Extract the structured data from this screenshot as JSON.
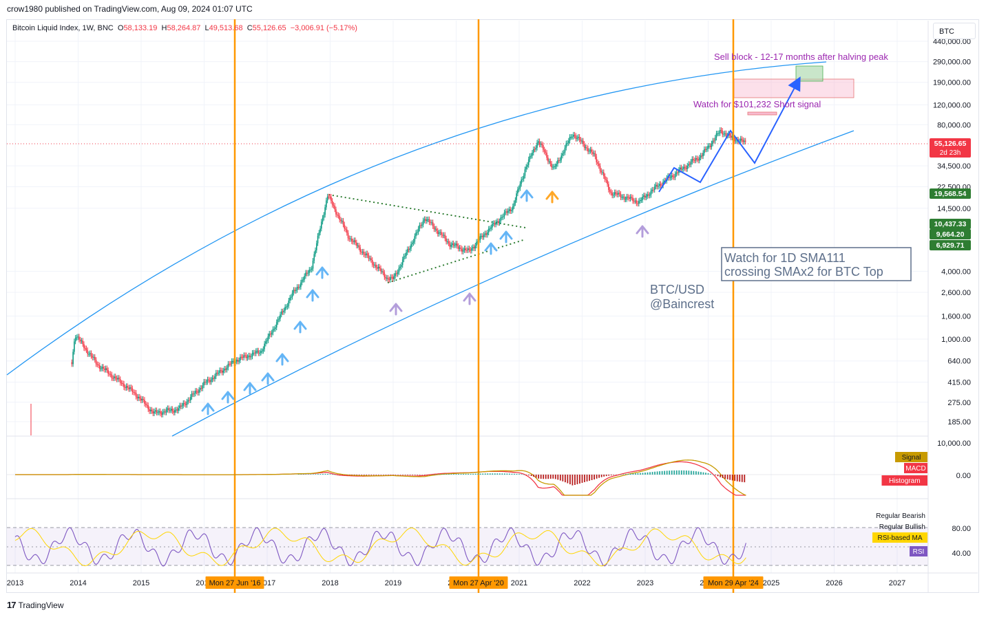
{
  "header": {
    "text": "crow1980 published on TradingView.com, Aug 09, 2024 01:07 UTC"
  },
  "legend": {
    "name": "Bitcoin Liquid Index, 1W, BNC",
    "o_label": "O",
    "o": "58,133.19",
    "h_label": "H",
    "h": "58,264.87",
    "l_label": "L",
    "l": "49,513.68",
    "c_label": "C",
    "c": "55,126.65",
    "change": "−3,006.91 (−5.17%)"
  },
  "symbol_box": "BTC",
  "footer": {
    "logo": "17",
    "brand": "TradingView"
  },
  "colors": {
    "up": "#089981",
    "down": "#f23645",
    "channel": "#2196f3",
    "halving": "#ff9800",
    "rsi": "#7e57c2",
    "rsi_ma": "#ffd600"
  },
  "chart_data": [
    {
      "type": "line",
      "title": "Bitcoin Liquid Index, 1W, BNC",
      "scale": "log",
      "x_labels": [
        "2013",
        "2014",
        "2015",
        "2016",
        "2017",
        "2018",
        "2019",
        "2020",
        "2021",
        "2022",
        "2023",
        "2024",
        "2025",
        "2026",
        "2027"
      ],
      "y_ticks": [
        "440,000.00",
        "290,000.00",
        "190,000.00",
        "120,000.00",
        "80,000.00",
        "34,500.00",
        "22,500.00",
        "14,500.00",
        "4,000.00",
        "2,600.00",
        "1,600.00",
        "1,000.00",
        "640.00",
        "415.00",
        "275.00",
        "185.00"
      ],
      "price_badges": [
        {
          "label": "55,126.65",
          "sub": "2d 23h",
          "color": "#f23645"
        },
        {
          "label": "19,568.54",
          "color": "#2e7d32"
        },
        {
          "label": "10,437.33",
          "color": "#2e7d32"
        },
        {
          "label": "9,664.20",
          "color": "#2e7d32"
        },
        {
          "label": "6,929.71",
          "color": "#2e7d32"
        }
      ],
      "series": [
        {
          "x": [
            2013.0,
            2013.4,
            2013.8,
            2013.95,
            2014.3,
            2014.9,
            2015.2,
            2015.6,
            2016.0,
            2016.5,
            2016.9,
            2017.4,
            2017.7,
            2017.96,
            2018.3,
            2018.9,
            2019.0,
            2019.5,
            2019.9,
            2020.2,
            2020.5,
            2020.9,
            2021.1,
            2021.3,
            2021.55,
            2021.85,
            2022.2,
            2022.45,
            2022.9,
            2023.2,
            2023.5,
            2023.9,
            2024.2,
            2024.35,
            2024.6
          ],
          "y": [
            13,
            100,
            200,
            1100,
            600,
            330,
            220,
            240,
            400,
            650,
            780,
            2500,
            4300,
            19000,
            8000,
            3500,
            3400,
            12000,
            7000,
            6000,
            9200,
            15000,
            33000,
            58000,
            32000,
            67000,
            42000,
            20000,
            16500,
            23000,
            30000,
            43000,
            71000,
            62000,
            55126.65
          ]
        }
      ],
      "annotations": [
        {
          "text": "Sell block - 12-17 months after halving peak",
          "color": "#9c27b0"
        },
        {
          "text": "Watch for $101,232 Short signal",
          "color": "#9c27b0"
        },
        {
          "text": "Watch for 1D SMA111",
          "color": "#5d6f8a"
        },
        {
          "text": "crossing SMAx2 for BTC Top",
          "color": "#5d6f8a"
        },
        {
          "text": "BTC/USD",
          "color": "#5d6f8a"
        },
        {
          "text": "@Baincrest",
          "color": "#5d6f8a"
        }
      ],
      "halving_labels": [
        "Mon 27 Jun '16",
        "Mon 27 Apr '20",
        "Mon 29 Apr '24"
      ]
    },
    {
      "type": "line",
      "y_ticks": [
        "10,000.00",
        "0.00"
      ],
      "legend": [
        {
          "label": "Signal",
          "color": "#c79a00"
        },
        {
          "label": "MACD",
          "color": "#f23645"
        },
        {
          "label": "Histogram",
          "color": "#f23645"
        }
      ]
    },
    {
      "type": "line",
      "y_ticks": [
        "80.00",
        "40.00"
      ],
      "legend": [
        {
          "label": "Regular Bearish"
        },
        {
          "label": "Regular Bullish"
        },
        {
          "label": "RSI-based MA",
          "color": "#ffd600"
        },
        {
          "label": "RSI",
          "color": "#7e57c2"
        }
      ]
    }
  ]
}
